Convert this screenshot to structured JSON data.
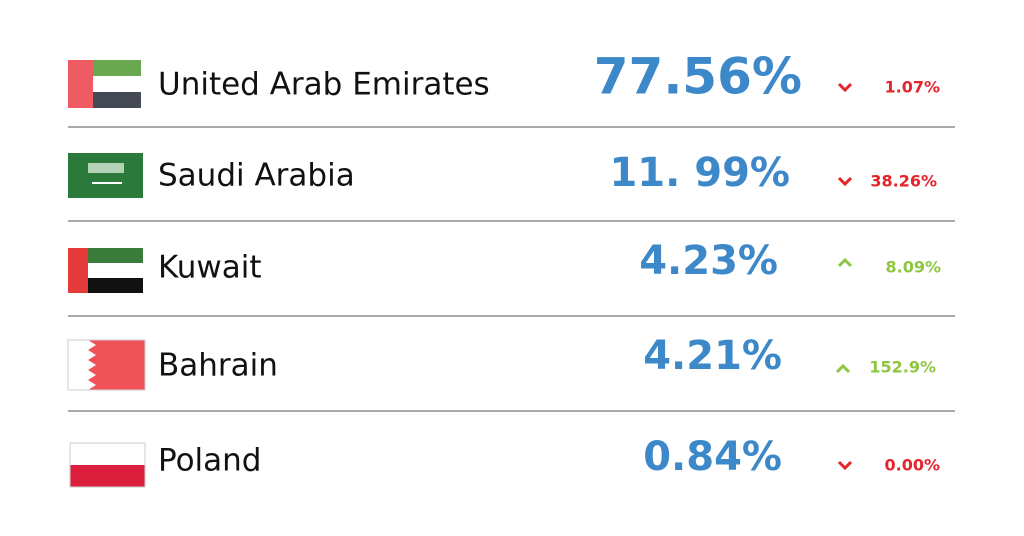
{
  "rows": [
    {
      "country": "United Arab Emirates",
      "share": "77.56%",
      "change": "1.07%"
    },
    {
      "country": "Saudi Arabia",
      "share": "11. 99%",
      "change": "38.26%"
    },
    {
      "country": "Kuwait",
      "share": "4.23%",
      "change": "8.09%"
    },
    {
      "country": "Bahrain",
      "share": "4.21%",
      "change": "152.9%"
    },
    {
      "country": "Poland",
      "share": "0.84%",
      "change": "0.00%"
    }
  ]
}
